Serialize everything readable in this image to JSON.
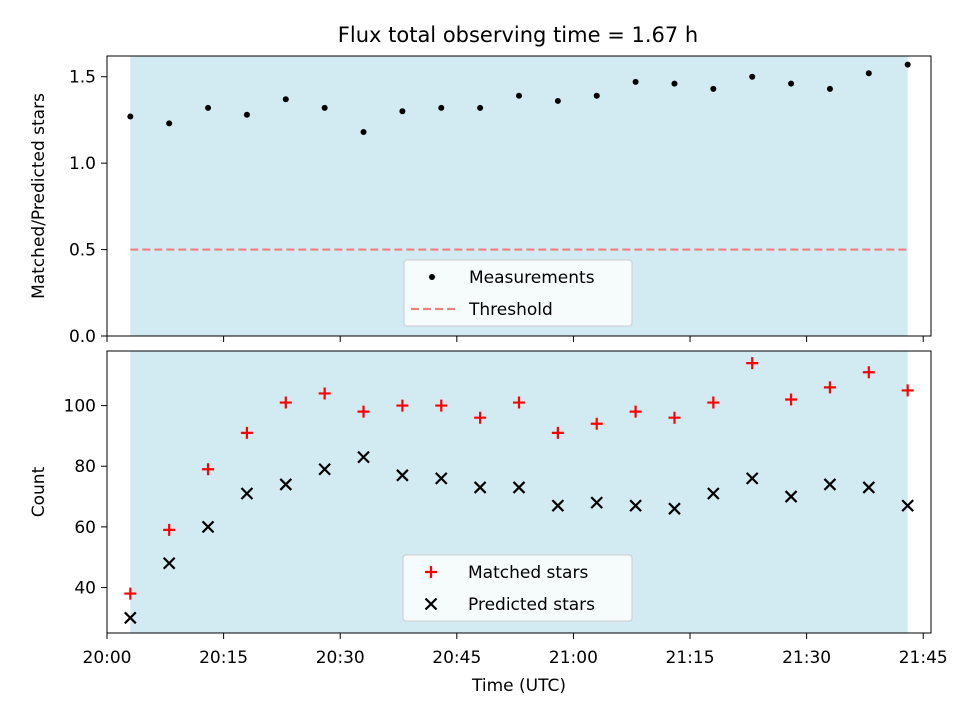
{
  "title": "Flux total observing time = 1.67 h",
  "colors": {
    "shade": "#add8e6",
    "threshold": "#f08080",
    "measurements": "#000000",
    "matched": "#ff0000",
    "predicted": "#000000"
  },
  "chart_data": [
    {
      "type": "scatter",
      "panel": "top",
      "xlabel": "",
      "ylabel": "Matched/Predicted stars",
      "ylim": [
        0,
        1.62
      ],
      "yticks": [
        0.0,
        0.5,
        1.0,
        1.5
      ],
      "ytick_labels": [
        "0.0",
        "0.5",
        "1.0",
        "1.5"
      ],
      "shaded_span": [
        "20:03",
        "21:43"
      ],
      "legend": {
        "placement": "lower center",
        "entries": [
          "Measurements",
          "Threshold"
        ]
      },
      "series": [
        {
          "name": "Measurements",
          "marker": "dot",
          "x": [
            "20:03",
            "20:08",
            "20:13",
            "20:18",
            "20:23",
            "20:28",
            "20:33",
            "20:38",
            "20:43",
            "20:48",
            "20:53",
            "20:58",
            "21:03",
            "21:08",
            "21:13",
            "21:18",
            "21:23",
            "21:28",
            "21:33",
            "21:38",
            "21:43"
          ],
          "values": [
            1.27,
            1.23,
            1.32,
            1.28,
            1.37,
            1.32,
            1.18,
            1.3,
            1.32,
            1.32,
            1.39,
            1.36,
            1.39,
            1.47,
            1.46,
            1.43,
            1.5,
            1.46,
            1.43,
            1.52,
            1.57
          ]
        },
        {
          "name": "Threshold",
          "style": "dashed-line",
          "x": [
            "20:03",
            "21:43"
          ],
          "values": [
            0.5,
            0.5
          ]
        }
      ]
    },
    {
      "type": "scatter",
      "panel": "bottom",
      "xlabel": "Time (UTC)",
      "ylabel": "Count",
      "ylim": [
        25,
        118
      ],
      "yticks": [
        40,
        60,
        80,
        100
      ],
      "ytick_labels": [
        "40",
        "60",
        "80",
        "100"
      ],
      "xlim": [
        "20:00",
        "21:46"
      ],
      "xticks": [
        "20:00",
        "20:15",
        "20:30",
        "20:45",
        "21:00",
        "21:15",
        "21:30",
        "21:45"
      ],
      "xtick_labels": [
        "20:00",
        "20:15",
        "20:30",
        "20:45",
        "21:00",
        "21:15",
        "21:30",
        "21:45"
      ],
      "shaded_span": [
        "20:03",
        "21:43"
      ],
      "legend": {
        "placement": "lower center",
        "entries": [
          "Matched stars",
          "Predicted stars"
        ]
      },
      "series": [
        {
          "name": "Matched stars",
          "marker": "plus",
          "x": [
            "20:03",
            "20:08",
            "20:13",
            "20:18",
            "20:23",
            "20:28",
            "20:33",
            "20:38",
            "20:43",
            "20:48",
            "20:53",
            "20:58",
            "21:03",
            "21:08",
            "21:13",
            "21:18",
            "21:23",
            "21:28",
            "21:33",
            "21:38",
            "21:43"
          ],
          "values": [
            38,
            59,
            79,
            91,
            101,
            104,
            98,
            100,
            100,
            96,
            101,
            91,
            94,
            98,
            96,
            101,
            114,
            102,
            106,
            111,
            105
          ]
        },
        {
          "name": "Predicted stars",
          "marker": "x",
          "x": [
            "20:03",
            "20:08",
            "20:13",
            "20:18",
            "20:23",
            "20:28",
            "20:33",
            "20:38",
            "20:43",
            "20:48",
            "20:53",
            "20:58",
            "21:03",
            "21:08",
            "21:13",
            "21:18",
            "21:23",
            "21:28",
            "21:33",
            "21:38",
            "21:43"
          ],
          "values": [
            30,
            48,
            60,
            71,
            74,
            79,
            83,
            77,
            76,
            73,
            73,
            67,
            68,
            67,
            66,
            71,
            76,
            70,
            74,
            73,
            67
          ]
        }
      ]
    }
  ]
}
